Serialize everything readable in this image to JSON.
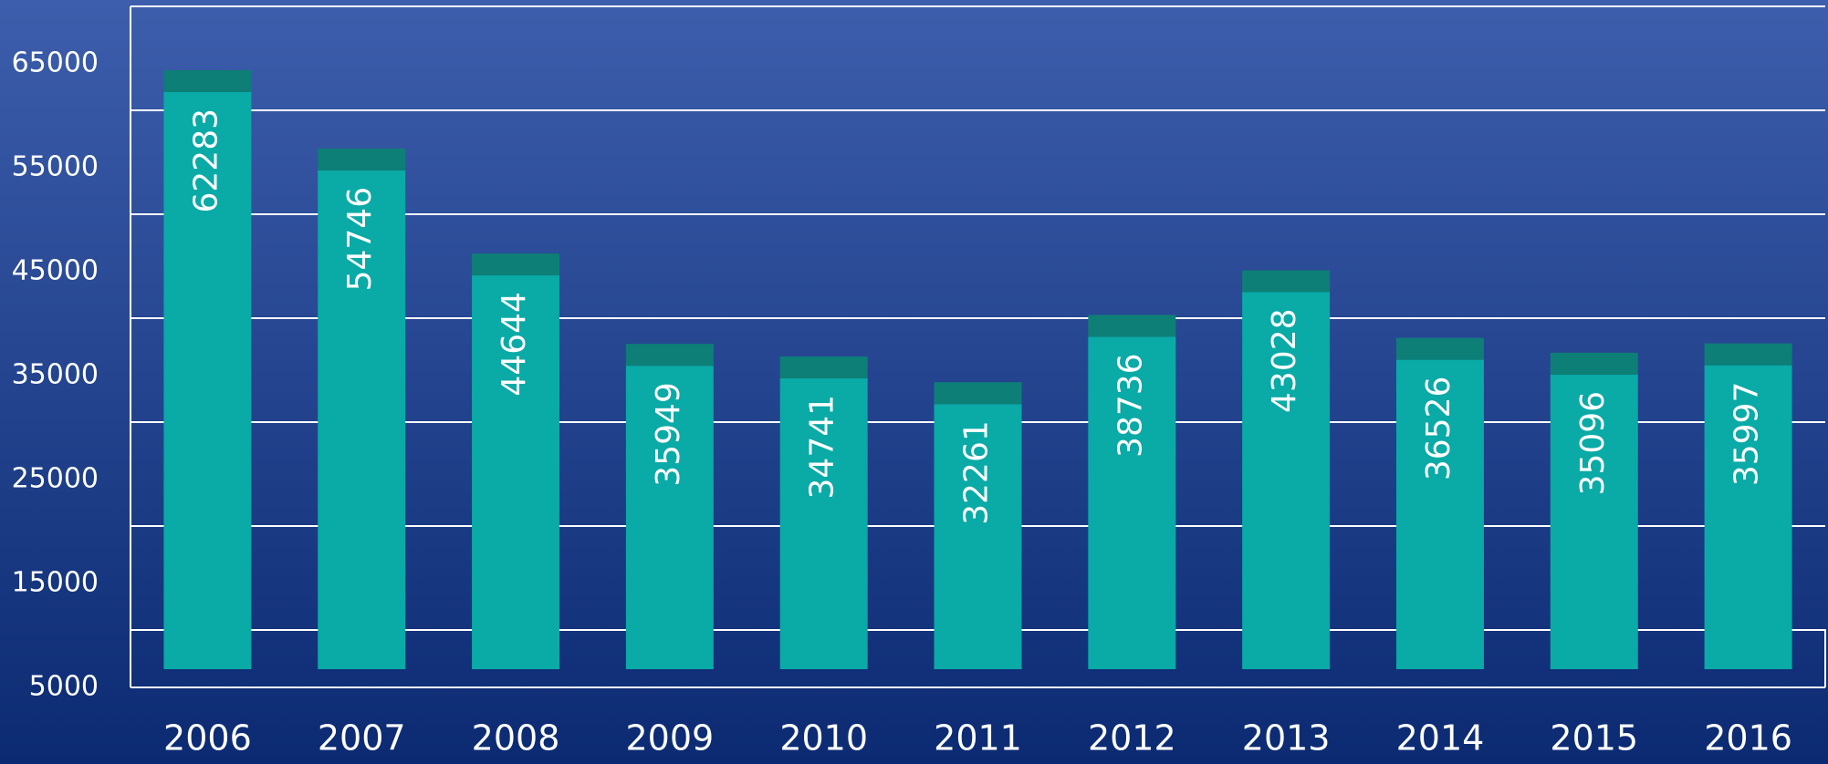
{
  "chart_data": {
    "type": "bar",
    "categories": [
      "2006",
      "2007",
      "2008",
      "2009",
      "2010",
      "2011",
      "2012",
      "2013",
      "2014",
      "2015",
      "2016"
    ],
    "values": [
      62283,
      54746,
      44644,
      35949,
      34741,
      32261,
      38736,
      43028,
      36526,
      35096,
      35997
    ],
    "color": "#0aaaa6",
    "ylim": [
      5000,
      70000
    ],
    "yticks": [
      5000,
      15000,
      25000,
      35000,
      45000,
      55000,
      65000
    ],
    "grid": true
  }
}
